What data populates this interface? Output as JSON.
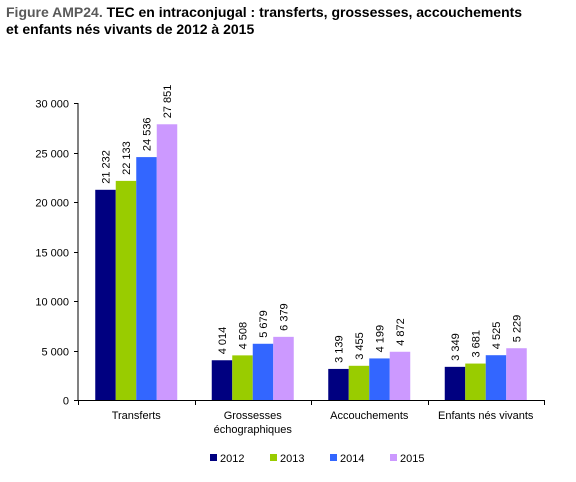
{
  "title": {
    "prefix": "Figure AMP24.",
    "line1": "TEC en intraconjugal : transferts, grossesses, accouchements",
    "line2": "et enfants nés vivants de 2012 à 2015"
  },
  "chart_data": {
    "type": "bar",
    "title": "TEC en intraconjugal : transferts, grossesses, accouchements et enfants nés vivants de 2012 à 2015",
    "categories": [
      [
        "Transferts"
      ],
      [
        "Grossesses",
        "échographiques"
      ],
      [
        "Accouchements"
      ],
      [
        "Enfants nés vivants"
      ]
    ],
    "series": [
      {
        "name": "2012",
        "color": "#000080",
        "values": [
          21232,
          4014,
          3139,
          3349
        ],
        "labels": [
          "21 232",
          "4 014",
          "3 139",
          "3 349"
        ]
      },
      {
        "name": "2013",
        "color": "#99CC00",
        "values": [
          22133,
          4508,
          3455,
          3681
        ],
        "labels": [
          "22 133",
          "4 508",
          "3 455",
          "3 681"
        ]
      },
      {
        "name": "2014",
        "color": "#3366FF",
        "values": [
          24536,
          5679,
          4199,
          4525
        ],
        "labels": [
          "24 536",
          "5 679",
          "4 199",
          "4 525"
        ]
      },
      {
        "name": "2015",
        "color": "#CC99FF",
        "values": [
          27851,
          6379,
          4872,
          5229
        ],
        "labels": [
          "27 851",
          "6 379",
          "4 872",
          "5 229"
        ]
      }
    ],
    "ylim": [
      0,
      30000
    ],
    "yticks": [
      0,
      5000,
      10000,
      15000,
      20000,
      25000,
      30000
    ],
    "ytick_labels": [
      "0",
      "5 000",
      "10 000",
      "15 000",
      "20 000",
      "25 000",
      "30 000"
    ],
    "xlabel": "",
    "ylabel": "",
    "grid": false,
    "legend": "bottom"
  }
}
